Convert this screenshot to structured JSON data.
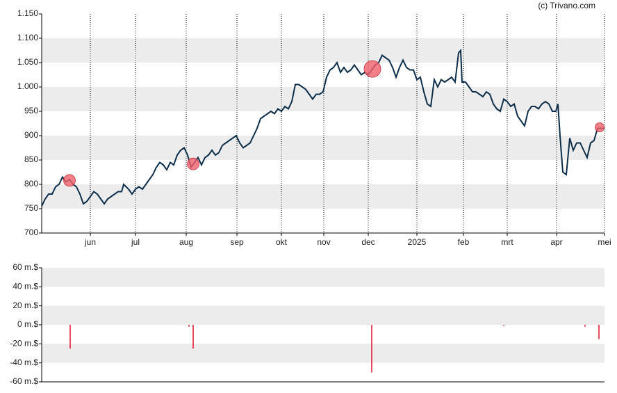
{
  "watermark": "(c) Trivano.com",
  "chart_data": [
    {
      "type": "line",
      "xlim": [
        0,
        810
      ],
      "ylim": [
        700,
        1150
      ],
      "yticks": [
        700,
        750,
        800,
        850,
        900,
        950,
        {
          "value": 1000,
          "label": "1.000"
        },
        {
          "value": 1050,
          "label": "1.050"
        },
        {
          "value": 1100,
          "label": "1.100"
        },
        {
          "value": 1150,
          "label": "1.150"
        }
      ],
      "xticks": [
        {
          "value": 70,
          "label": "jun"
        },
        {
          "value": 135,
          "label": "jul"
        },
        {
          "value": 208,
          "label": "aug"
        },
        {
          "value": 281,
          "label": "sep"
        },
        {
          "value": 345,
          "label": "okt"
        },
        {
          "value": 406,
          "label": "nov"
        },
        {
          "value": 470,
          "label": "dec"
        },
        {
          "value": 540,
          "label": "2025"
        },
        {
          "value": 607,
          "label": "feb"
        },
        {
          "value": 670,
          "label": "mrt"
        },
        {
          "value": 741,
          "label": "apr"
        },
        {
          "value": 810,
          "label": "mei"
        }
      ],
      "vgrid": true,
      "color": "#0d2e4a",
      "marker_color": "#f0606c",
      "x": [
        0,
        5,
        10,
        15,
        20,
        25,
        30,
        35,
        40,
        45,
        50,
        55,
        60,
        65,
        70,
        75,
        80,
        85,
        90,
        95,
        100,
        105,
        110,
        115,
        118,
        125,
        130,
        135,
        140,
        145,
        150,
        155,
        160,
        165,
        170,
        175,
        180,
        185,
        190,
        195,
        200,
        205,
        210,
        215,
        220,
        225,
        230,
        235,
        240,
        245,
        250,
        255,
        260,
        265,
        270,
        275,
        280,
        285,
        290,
        295,
        300,
        305,
        310,
        315,
        320,
        325,
        330,
        335,
        340,
        345,
        350,
        355,
        360,
        365,
        370,
        375,
        380,
        385,
        390,
        395,
        400,
        405,
        410,
        415,
        420,
        425,
        430,
        435,
        440,
        445,
        450,
        455,
        460,
        465,
        470,
        475,
        480,
        485,
        490,
        495,
        500,
        505,
        510,
        515,
        520,
        525,
        530,
        535,
        540,
        545,
        550,
        555,
        560,
        565,
        570,
        575,
        580,
        585,
        590,
        595,
        600,
        603,
        605,
        610,
        615,
        620,
        625,
        630,
        635,
        640,
        645,
        650,
        655,
        660,
        665,
        670,
        675,
        680,
        685,
        690,
        695,
        700,
        705,
        710,
        715,
        720,
        725,
        730,
        735,
        740,
        743,
        746,
        750,
        755,
        760,
        765,
        770,
        775,
        780,
        785,
        790,
        795,
        800,
        805,
        810
      ],
      "values": [
        755,
        770,
        780,
        780,
        795,
        800,
        815,
        805,
        810,
        800,
        795,
        780,
        760,
        765,
        775,
        785,
        780,
        770,
        760,
        770,
        775,
        780,
        785,
        785,
        800,
        790,
        780,
        790,
        795,
        790,
        800,
        810,
        820,
        835,
        845,
        840,
        830,
        845,
        840,
        860,
        870,
        875,
        860,
        835,
        845,
        855,
        840,
        855,
        860,
        870,
        860,
        865,
        880,
        885,
        890,
        895,
        900,
        885,
        875,
        880,
        885,
        900,
        915,
        935,
        940,
        945,
        950,
        945,
        955,
        950,
        960,
        955,
        970,
        1005,
        1005,
        1000,
        995,
        985,
        975,
        985,
        985,
        990,
        1020,
        1035,
        1040,
        1050,
        1030,
        1040,
        1030,
        1035,
        1045,
        1035,
        1025,
        1030,
        1025,
        1035,
        1045,
        1050,
        1065,
        1060,
        1055,
        1040,
        1020,
        1040,
        1055,
        1040,
        1035,
        1035,
        1015,
        1020,
        990,
        965,
        960,
        1015,
        1000,
        1015,
        1010,
        1015,
        1020,
        1010,
        1070,
        1075,
        1010,
        1010,
        1000,
        990,
        990,
        985,
        980,
        990,
        985,
        965,
        955,
        950,
        975,
        970,
        960,
        965,
        940,
        930,
        920,
        950,
        960,
        960,
        955,
        965,
        970,
        965,
        950,
        950,
        965,
        900,
        825,
        820,
        895,
        870,
        885,
        885,
        870,
        855,
        885,
        890,
        915,
        915,
        915
      ],
      "markers": {
        "x": [
          40,
          218,
          476,
          803
        ],
        "values": [
          808,
          842,
          1037,
          917
        ],
        "sizes": [
          25,
          25,
          50,
          15
        ]
      }
    },
    {
      "type": "bar",
      "xlim": [
        0,
        810
      ],
      "ylim": [
        -60,
        60
      ],
      "color": "#e0102a",
      "yticks": [
        {
          "value": -60,
          "label": "-60 m.$"
        },
        {
          "value": -40,
          "label": "-40 m.$"
        },
        {
          "value": -20,
          "label": "-20 m.$"
        },
        {
          "value": 0,
          "label": "0 m.$"
        },
        {
          "value": 20,
          "label": "20 m.$"
        },
        {
          "value": 40,
          "label": "40 m.$"
        },
        {
          "value": 60,
          "label": "60 m.$"
        }
      ],
      "x": [
        41,
        212,
        218,
        475,
        665,
        782,
        802
      ],
      "values": [
        -25,
        -2,
        -25,
        -50,
        -1,
        -2,
        -15
      ]
    }
  ]
}
